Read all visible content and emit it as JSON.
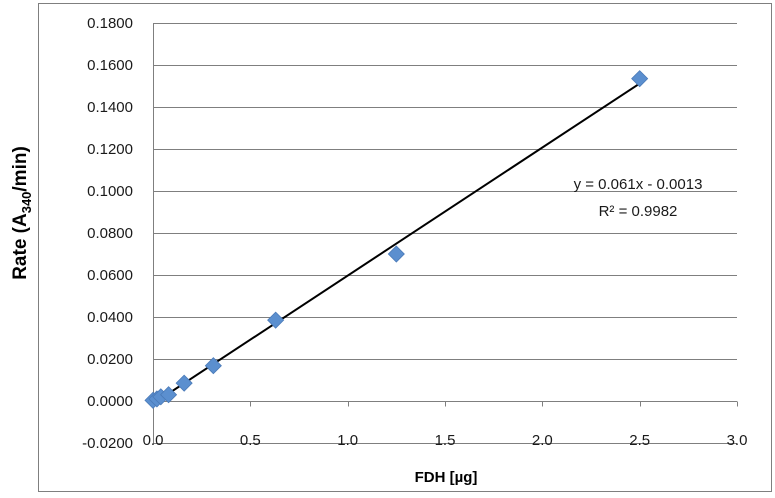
{
  "chart_data": {
    "type": "scatter",
    "title": "",
    "xlabel": "FDH [µg]",
    "ylabel_main": "Rate (A",
    "ylabel_sub": "340",
    "ylabel_end": "/min)",
    "xlim": [
      0,
      3.0
    ],
    "ylim": [
      -0.02,
      0.18
    ],
    "x_ticks": [
      0,
      0.5,
      1.0,
      1.5,
      2.0,
      2.5,
      3.0
    ],
    "x_tick_labels": [
      "0.0",
      "0.5",
      "1.0",
      "1.5",
      "2.0",
      "2.5",
      "3.0"
    ],
    "y_ticks": [
      -0.02,
      0,
      0.02,
      0.04,
      0.06,
      0.08,
      0.1,
      0.12,
      0.14,
      0.16,
      0.18
    ],
    "y_tick_labels": [
      "-0.0200",
      "0.0000",
      "0.0200",
      "0.0400",
      "0.0600",
      "0.0800",
      "0.1000",
      "0.1200",
      "0.1400",
      "0.1600",
      "0.1800"
    ],
    "grid": "horizontal",
    "legend": "none",
    "series": [
      {
        "marker": "diamond",
        "color": "#5b8fcf",
        "x": [
          0.0,
          0.02,
          0.04,
          0.08,
          0.16,
          0.31,
          0.63,
          1.25,
          2.5
        ],
        "y": [
          0.0003,
          0.001,
          0.002,
          0.003,
          0.0085,
          0.0168,
          0.0385,
          0.07,
          0.1535
        ]
      }
    ],
    "trendline": {
      "slope": 0.061,
      "intercept": -0.0013,
      "x_range": [
        0.0,
        2.5
      ],
      "color": "#000000"
    },
    "annotations": {
      "equation": "y = 0.061x - 0.0013",
      "r_squared": "R² = 0.9982"
    }
  }
}
